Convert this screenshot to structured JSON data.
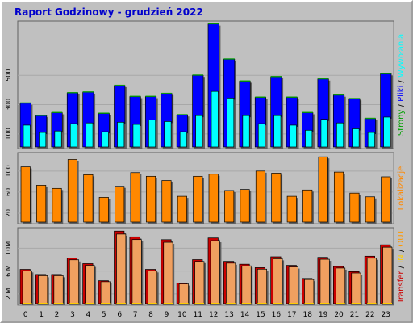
{
  "title": "Raport Godzinowy -  grudzień 2022",
  "colors": {
    "background": "#c0c0c0",
    "border": "#ffffff",
    "title": "#0000cc",
    "strony": "#00a000",
    "pliki": "#0000ff",
    "wywolania": "#00ffff",
    "lokalizacje": "#ff8800",
    "transfer": "#cc0000",
    "in": "#ffcc00",
    "out": "#ff9900"
  },
  "chart_data": [
    {
      "type": "bar",
      "ylabel_parts": [
        "Strony",
        "Pliki",
        "Wywołania"
      ],
      "categories": [
        "0",
        "1",
        "2",
        "3",
        "4",
        "5",
        "6",
        "7",
        "8",
        "9",
        "10",
        "11",
        "12",
        "13",
        "14",
        "15",
        "16",
        "17",
        "18",
        "19",
        "20",
        "21",
        "22",
        "23"
      ],
      "yticks": [
        100,
        300,
        500
      ],
      "ylim": [
        0,
        870
      ],
      "series": [
        {
          "name": "Strony",
          "values": [
            10,
            8,
            9,
            12,
            13,
            7,
            15,
            18,
            14,
            16,
            10,
            20,
            25,
            22,
            18,
            14,
            19,
            16,
            9,
            20,
            17,
            13,
            8,
            22
          ]
        },
        {
          "name": "Pliki",
          "values": [
            310,
            225,
            245,
            380,
            385,
            240,
            430,
            355,
            355,
            375,
            230,
            500,
            850,
            610,
            460,
            350,
            490,
            350,
            245,
            475,
            365,
            340,
            205,
            510
          ]
        },
        {
          "name": "Wywołania",
          "values": [
            160,
            110,
            120,
            170,
            175,
            115,
            180,
            165,
            195,
            185,
            115,
            225,
            390,
            345,
            225,
            170,
            225,
            160,
            125,
            200,
            175,
            135,
            110,
            215
          ]
        }
      ]
    },
    {
      "type": "bar",
      "ylabel_parts": [
        "Lokalizacje"
      ],
      "categories": [
        "0",
        "1",
        "2",
        "3",
        "4",
        "5",
        "6",
        "7",
        "8",
        "9",
        "10",
        "11",
        "12",
        "13",
        "14",
        "15",
        "16",
        "17",
        "18",
        "19",
        "20",
        "21",
        "22",
        "23"
      ],
      "yticks": [
        20,
        60,
        100
      ],
      "ylim": [
        0,
        135
      ],
      "series": [
        {
          "name": "Lokalizacje",
          "values": [
            108,
            73,
            67,
            122,
            93,
            50,
            71,
            97,
            90,
            82,
            52,
            90,
            94,
            63,
            65,
            100,
            96,
            52,
            64,
            127,
            98,
            58,
            51,
            89
          ]
        }
      ]
    },
    {
      "type": "bar",
      "ylabel_parts": [
        "Transfer",
        "IN",
        "OUT"
      ],
      "categories": [
        "0",
        "1",
        "2",
        "3",
        "4",
        "5",
        "6",
        "7",
        "8",
        "9",
        "10",
        "11",
        "12",
        "13",
        "14",
        "15",
        "16",
        "17",
        "18",
        "19",
        "20",
        "21",
        "22",
        "23"
      ],
      "yticks": [
        2,
        6,
        10
      ],
      "ytick_labels": [
        "2 M",
        "6 M",
        "10M"
      ],
      "ylim": [
        0,
        13.6
      ],
      "series": [
        {
          "name": "IN",
          "values": [
            0.1,
            0.1,
            0.1,
            0.1,
            0.1,
            0.1,
            0.1,
            0.1,
            0.1,
            0.1,
            0.1,
            0.1,
            0.1,
            0.1,
            0.1,
            0.1,
            0.1,
            0.1,
            0.1,
            0.1,
            0.1,
            0.1,
            0.1,
            0.1
          ]
        },
        {
          "name": "OUT",
          "values": [
            6.3,
            5.4,
            5.4,
            8.3,
            7.3,
            4.3,
            13.0,
            12.0,
            6.3,
            11.5,
            3.9,
            8.0,
            11.8,
            7.7,
            7.2,
            6.6,
            8.5,
            7.0,
            4.7,
            8.4,
            6.8,
            5.9,
            8.6,
            10.6
          ]
        }
      ]
    }
  ]
}
